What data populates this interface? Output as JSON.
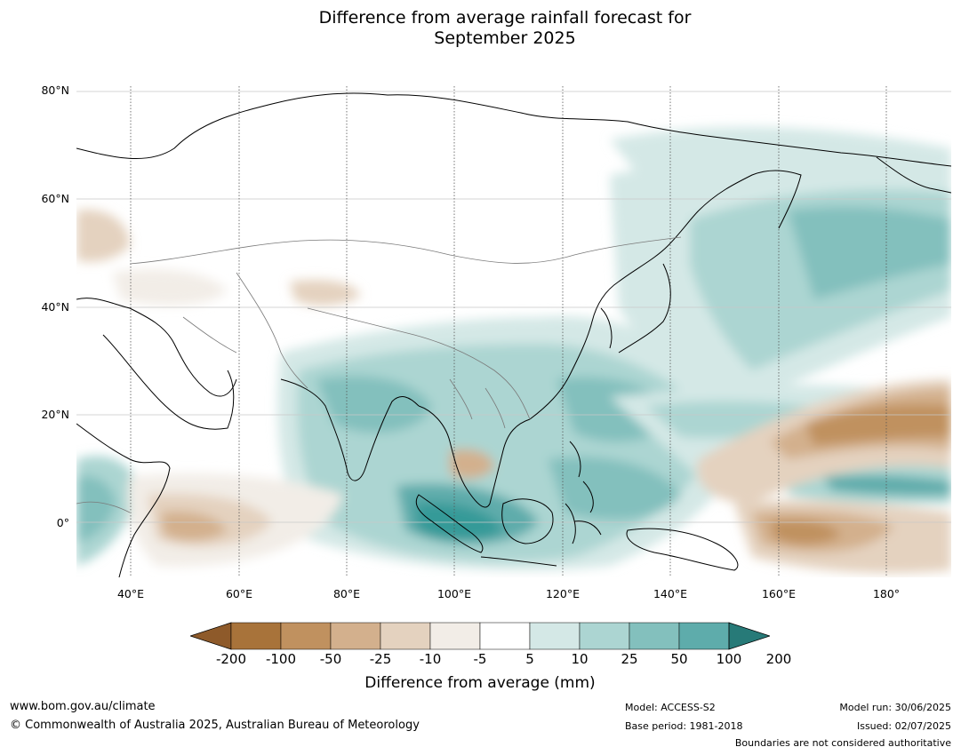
{
  "title": "Difference from average rainfall forecast for\nSeptember 2025",
  "map": {
    "lat_labels": [
      "80°N",
      "60°N",
      "40°N",
      "20°N",
      "0°"
    ],
    "lon_labels": [
      "40°E",
      "60°E",
      "80°E",
      "100°E",
      "120°E",
      "140°E",
      "160°E",
      "180°"
    ],
    "extent": {
      "lon_min": 30,
      "lon_max": 192,
      "lat_min": -10,
      "lat_max": 80
    }
  },
  "colorbar": {
    "ticks": [
      "-200",
      "-100",
      "-50",
      "-25",
      "-10",
      "-5",
      "5",
      "10",
      "25",
      "50",
      "100",
      "200"
    ],
    "colors": [
      "#a8733a",
      "#c0915f",
      "#d3b08d",
      "#e4d2bf",
      "#f2ede7",
      "#ffffff",
      "#d4e8e6",
      "#acd5d2",
      "#83c0bd",
      "#5eacab",
      "#369a98",
      "#277a78"
    ],
    "label": "Difference from average (mm)"
  },
  "footer": {
    "website": "www.bom.gov.au/climate",
    "copyright": "© Commonwealth of Australia 2025, Australian Bureau of Meteorology",
    "model": "Model: ACCESS-S2",
    "base_period": "Base period: 1981-2018",
    "model_run": "Model run: 30/06/2025",
    "issued": "Issued: 02/07/2025",
    "disclaimer": "Boundaries are not considered authoritative"
  }
}
